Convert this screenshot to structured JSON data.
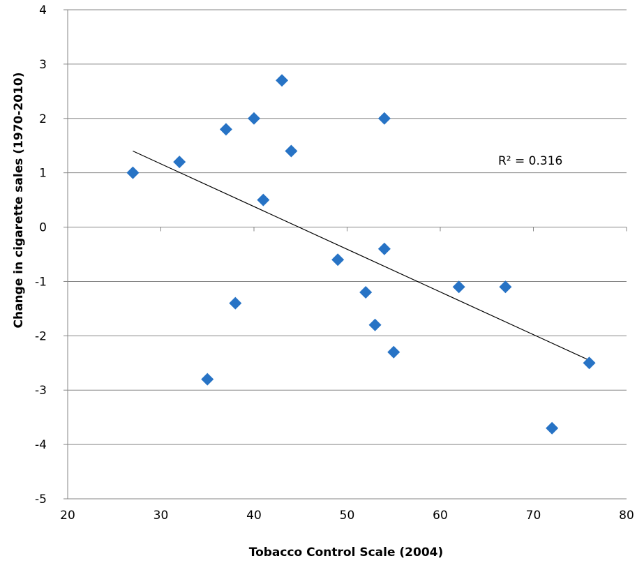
{
  "chart_data": {
    "type": "scatter",
    "title": "",
    "xlabel": "Tobacco Control Scale (2004)",
    "ylabel": "Change in cigarette sales (1970-2010)",
    "xlim": [
      20,
      80
    ],
    "ylim": [
      -5,
      4
    ],
    "xticks": [
      20,
      30,
      40,
      50,
      60,
      70,
      80
    ],
    "yticks": [
      4,
      3,
      2,
      1,
      0,
      -1,
      -2,
      -3,
      -4,
      -5
    ],
    "grid": "horizontal",
    "marker_color": "#2773C5",
    "marker_shape": "diamond",
    "points": [
      {
        "x": 27,
        "y": 1.0
      },
      {
        "x": 32,
        "y": 1.2
      },
      {
        "x": 35,
        "y": -2.8
      },
      {
        "x": 37,
        "y": 1.8
      },
      {
        "x": 38,
        "y": -1.4
      },
      {
        "x": 40,
        "y": 2.0
      },
      {
        "x": 41,
        "y": 0.5
      },
      {
        "x": 43,
        "y": 2.7
      },
      {
        "x": 44,
        "y": 1.4
      },
      {
        "x": 49,
        "y": -0.6
      },
      {
        "x": 52,
        "y": -1.2
      },
      {
        "x": 53,
        "y": -1.8
      },
      {
        "x": 54,
        "y": -0.4
      },
      {
        "x": 54,
        "y": 2.0
      },
      {
        "x": 55,
        "y": -2.3
      },
      {
        "x": 62,
        "y": -1.1
      },
      {
        "x": 67,
        "y": -1.1
      },
      {
        "x": 72,
        "y": -3.7
      },
      {
        "x": 76,
        "y": -2.5
      }
    ],
    "trendline": {
      "x": [
        27,
        76
      ],
      "y": [
        1.4,
        -2.45
      ],
      "color": "#000000"
    },
    "annotation": "R² = 0.316"
  }
}
